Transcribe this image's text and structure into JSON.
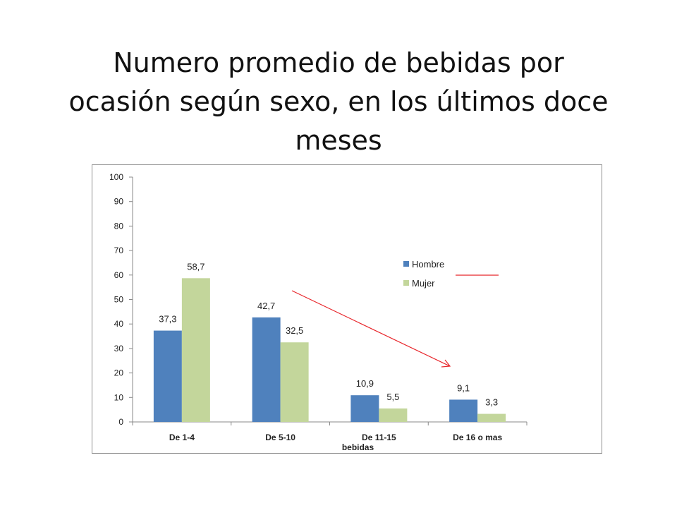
{
  "slide": {
    "title_lines": [
      "Numero promedio de bebidas por",
      "ocasión según sexo,  en los últimos doce",
      "meses"
    ]
  },
  "chart_data": {
    "type": "bar",
    "title": "",
    "xlabel": "bebidas",
    "ylabel": "",
    "ylim": [
      0,
      100
    ],
    "yticks": [
      0,
      10,
      20,
      30,
      40,
      50,
      60,
      70,
      80,
      90,
      100
    ],
    "ytick_labels": [
      "0",
      "10",
      "20",
      "30",
      "40",
      "50",
      "60",
      "70",
      "80",
      "90",
      "100"
    ],
    "categories": [
      "De 1-4",
      "De 5-10",
      "De 11-15",
      "De 16 o mas"
    ],
    "series": [
      {
        "name": "Hombre",
        "color": "#4f81bd",
        "values": [
          37.3,
          42.7,
          10.9,
          9.1
        ],
        "labels": [
          "37,3",
          "42,7",
          "10,9",
          "9,1"
        ]
      },
      {
        "name": "Mujer",
        "color": "#c3d69b",
        "values": [
          58.7,
          32.5,
          5.5,
          3.3
        ],
        "labels": [
          "58,7",
          "32,5",
          "5,5",
          "3,3"
        ]
      }
    ],
    "legend_position": "right",
    "grid": false,
    "annotation_color": "#e8262b"
  }
}
